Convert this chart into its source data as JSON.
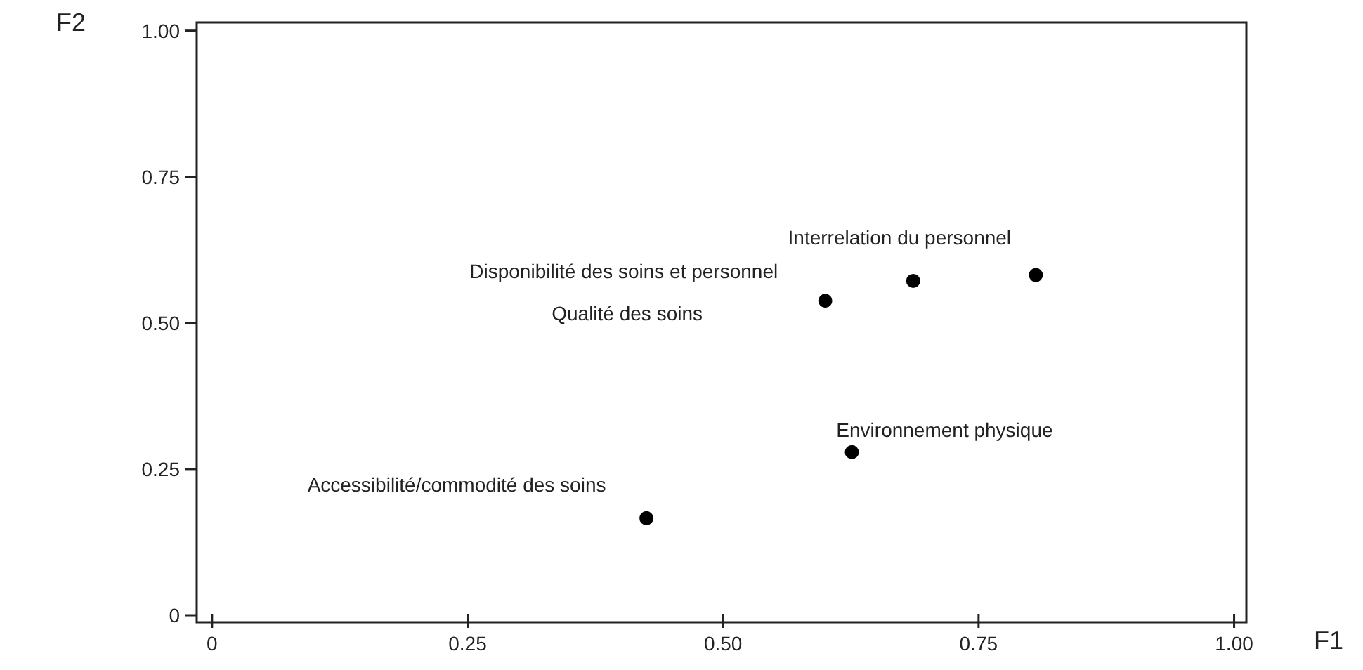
{
  "chart_data": {
    "type": "scatter",
    "xlabel": "F1",
    "ylabel": "F2",
    "x": [
      0.425,
      0.626,
      0.6,
      0.686,
      0.806
    ],
    "values": [
      0.166,
      0.279,
      0.538,
      0.572,
      0.582
    ],
    "color": "#000000",
    "marker": "circle",
    "xlim": [
      -0.015,
      1.012
    ],
    "ylim": [
      -0.012,
      1.014
    ],
    "xticks": [
      0,
      {
        "value": 0.25,
        "label": "0.25"
      },
      {
        "value": 0.5,
        "label": "0.50"
      },
      {
        "value": 0.75,
        "label": "0.75"
      },
      {
        "value": 1,
        "label": "1.00"
      }
    ],
    "yticks": [
      0,
      {
        "value": 0.25,
        "label": "0.25"
      },
      {
        "value": 0.5,
        "label": "0.50"
      },
      {
        "value": 0.75,
        "label": "0.75"
      },
      {
        "value": 1,
        "label": "1.00"
      }
    ],
    "grid": false,
    "annotations": [
      "Accessibilité/commodité des soins",
      "Environnement physique",
      "Qualité des soins",
      "Disponibilité des soins et personnel",
      "Interrelation du personnel"
    ]
  }
}
